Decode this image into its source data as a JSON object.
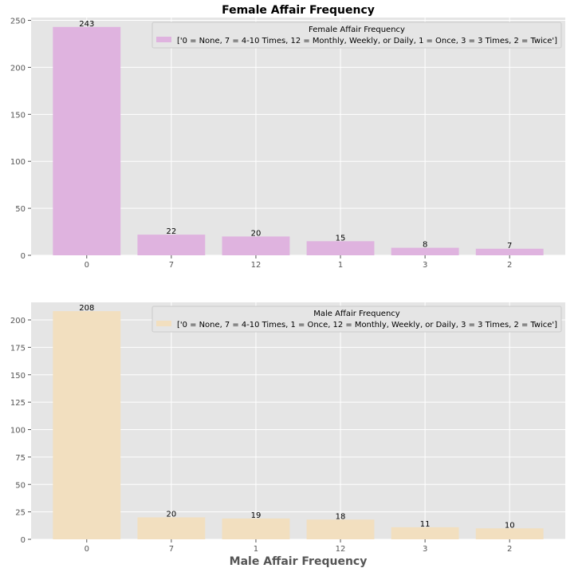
{
  "chart_data": [
    {
      "type": "bar",
      "title": "Female Affair Frequency",
      "xlabel": "",
      "ylabel": "",
      "categories": [
        "0",
        "7",
        "12",
        "1",
        "3",
        "2"
      ],
      "values": [
        243,
        22,
        20,
        15,
        8,
        7
      ],
      "ylim": [
        0,
        253
      ],
      "yticks": [
        0,
        50,
        100,
        150,
        200,
        250
      ],
      "grid": true,
      "bar_color": "#dfb3df",
      "legend": {
        "title": "Female Affair Frequency",
        "label": "['0 = None, 7 = 4-10 Times, 12 = Monthly, Weekly, or Daily, 1 = Once, 3 = 3 Times, 2 = Twice']",
        "placement": "top-right"
      }
    },
    {
      "type": "bar",
      "title": "",
      "xlabel": "Male Affair Frequency",
      "ylabel": "",
      "categories": [
        "0",
        "7",
        "1",
        "12",
        "3",
        "2"
      ],
      "values": [
        208,
        20,
        19,
        18,
        11,
        10
      ],
      "ylim": [
        0,
        216
      ],
      "yticks": [
        0,
        25,
        50,
        75,
        100,
        125,
        150,
        175,
        200
      ],
      "grid": true,
      "bar_color": "#f2dfbf",
      "legend": {
        "title": "Male Affair Frequency",
        "label": "['0 = None, 7 = 4-10 Times, 1 = Once, 12 = Monthly, Weekly, or Daily, 3 = 3 Times, 2 = Twice']",
        "placement": "top-right"
      }
    }
  ],
  "colors": {
    "plot_background": "#e5e5e5",
    "grid": "#ffffff",
    "tick_text": "#555555"
  }
}
